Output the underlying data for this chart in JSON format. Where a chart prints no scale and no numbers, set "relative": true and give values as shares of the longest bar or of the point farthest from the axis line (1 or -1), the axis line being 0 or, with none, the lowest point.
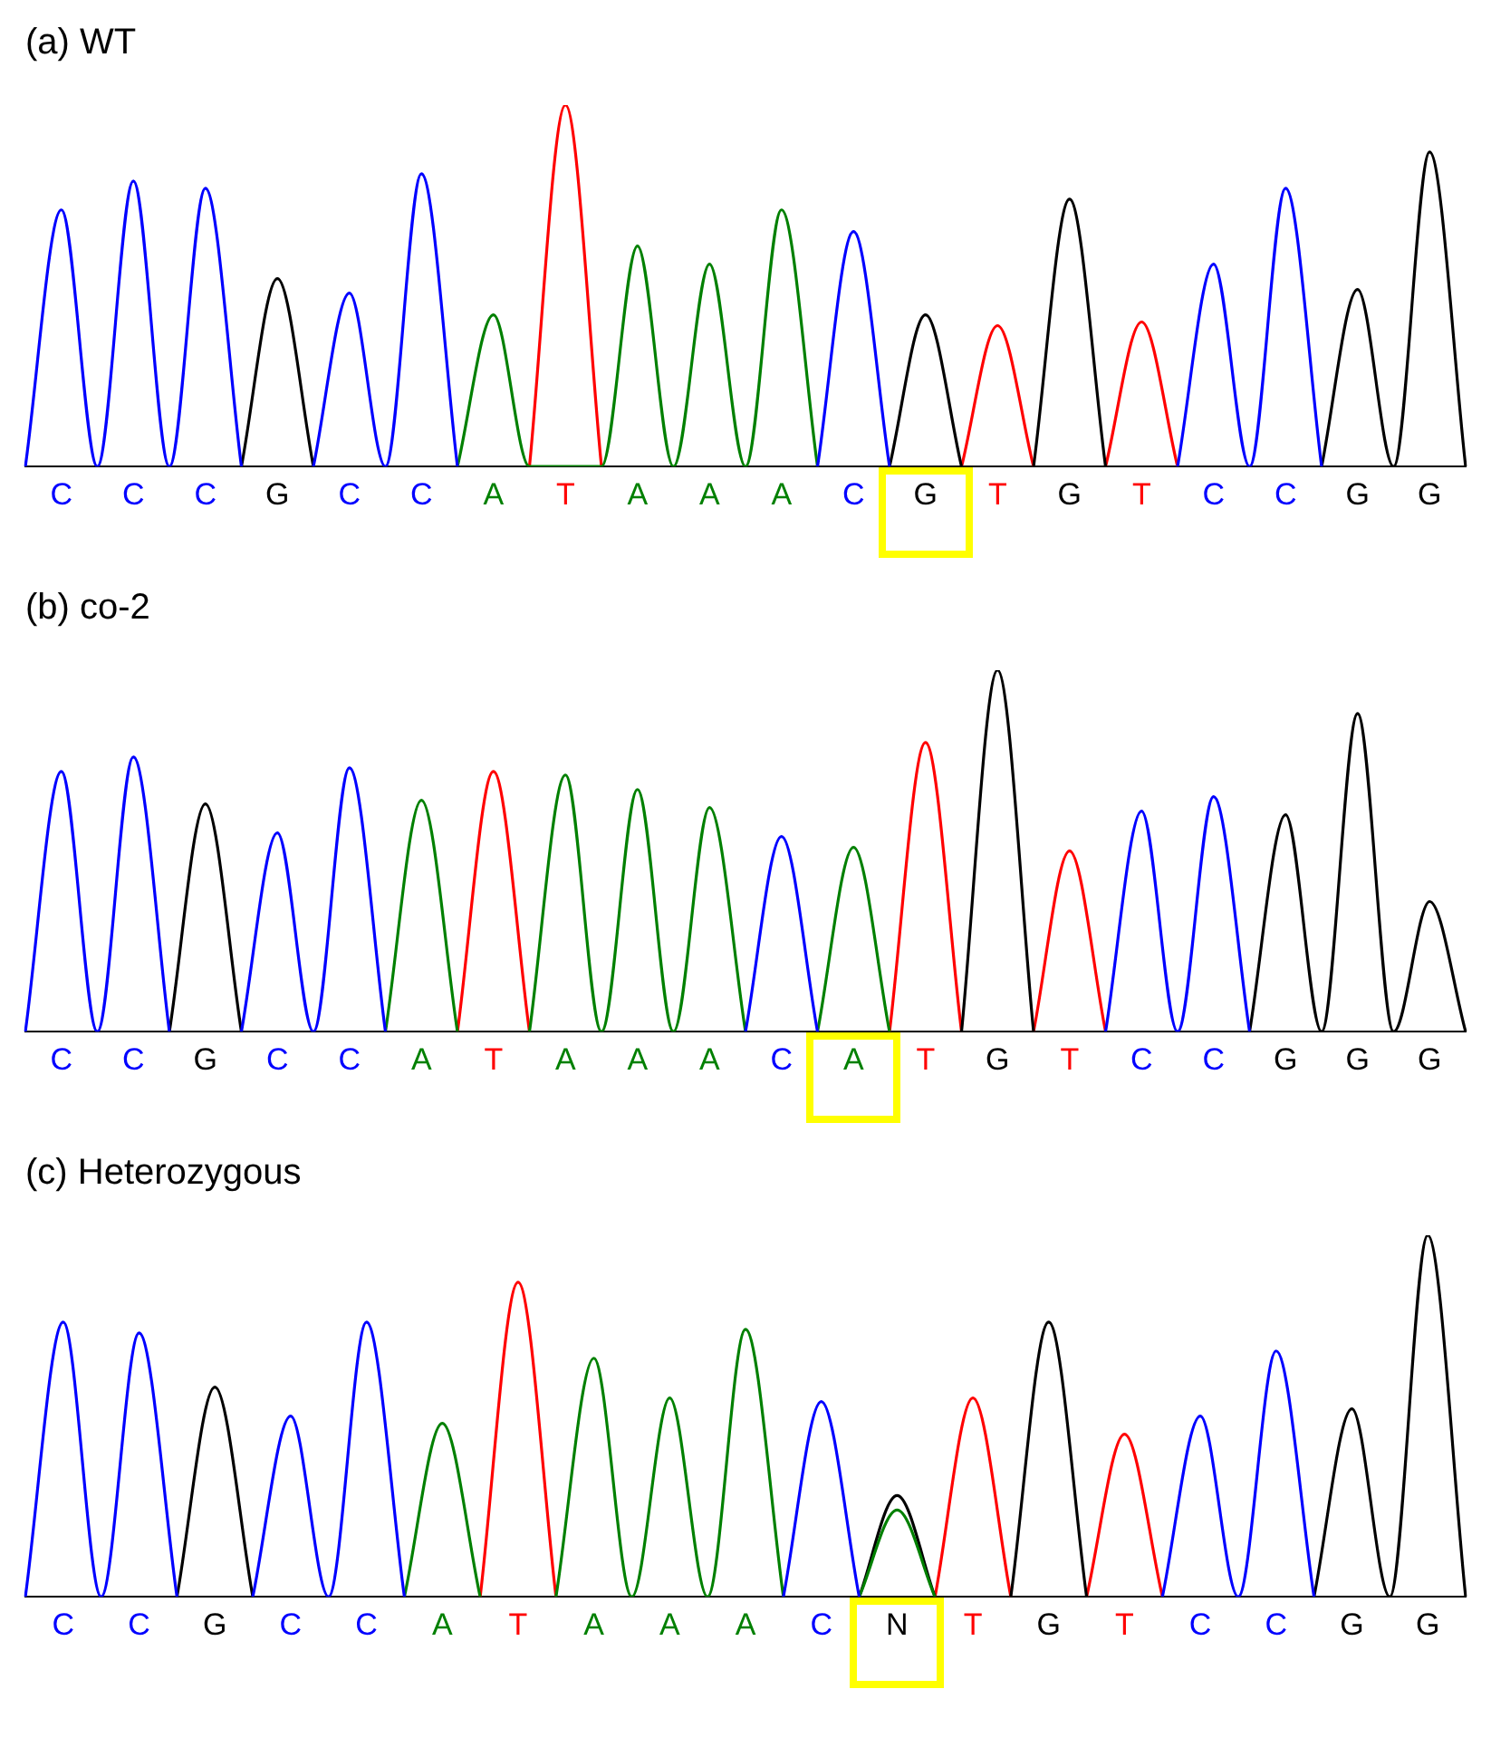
{
  "chart_data": [
    {
      "type": "line",
      "title": "(a) WT",
      "relative": true,
      "legend": false,
      "grid": false,
      "categories": [
        null,
        "C",
        null,
        "C",
        null,
        "C",
        null,
        "G",
        null,
        "C",
        null,
        "C",
        null,
        "A",
        null,
        "T",
        null,
        "A",
        null,
        "A",
        null,
        "A",
        null,
        "C",
        null,
        "G",
        null,
        "T",
        null,
        "G",
        null,
        "T",
        null,
        "C",
        null,
        "C",
        null,
        "G",
        null,
        "G",
        null
      ],
      "series": [
        {
          "color": "#0000ff",
          "values": [
            0,
            0.71,
            0,
            0.79,
            0,
            0.77,
            0,
            null,
            0,
            0.48,
            0,
            0.81,
            0,
            null,
            null,
            null,
            null,
            null,
            null,
            null,
            null,
            null,
            0,
            0.65,
            0,
            null,
            null,
            null,
            null,
            null,
            null,
            null,
            0,
            0.56,
            0,
            0.77,
            0,
            null,
            null,
            null,
            null
          ]
        },
        {
          "color": "#008000",
          "values": [
            null,
            null,
            null,
            null,
            null,
            null,
            null,
            null,
            null,
            null,
            null,
            null,
            0,
            0.42,
            0,
            0,
            0,
            0.61,
            0,
            0.56,
            0,
            0.71,
            0,
            null,
            null,
            null,
            null,
            null,
            null,
            null,
            null,
            null,
            null,
            null,
            null,
            null,
            null,
            null,
            null,
            null,
            null
          ]
        },
        {
          "color": "#000000",
          "values": [
            null,
            null,
            null,
            null,
            null,
            null,
            0,
            0.52,
            0,
            null,
            null,
            null,
            null,
            null,
            null,
            null,
            null,
            null,
            null,
            null,
            null,
            null,
            null,
            null,
            0,
            0.42,
            0,
            null,
            0,
            0.74,
            0,
            null,
            null,
            null,
            null,
            null,
            0,
            0.49,
            0,
            0.87,
            0
          ]
        },
        {
          "color": "#ff0000",
          "values": [
            null,
            null,
            null,
            null,
            null,
            null,
            null,
            null,
            null,
            null,
            null,
            null,
            null,
            null,
            0,
            1,
            0,
            null,
            null,
            null,
            null,
            null,
            null,
            null,
            null,
            null,
            0,
            0.39,
            0,
            null,
            0,
            0.4,
            0,
            null,
            null,
            null,
            null,
            null,
            null,
            null,
            null
          ]
        }
      ]
    },
    {
      "type": "line",
      "title": "(b) co-2",
      "relative": true,
      "legend": false,
      "grid": false,
      "categories": [
        null,
        "C",
        null,
        "C",
        null,
        "G",
        null,
        "C",
        null,
        "C",
        null,
        "A",
        null,
        "T",
        null,
        "A",
        null,
        "A",
        null,
        "A",
        null,
        "C",
        null,
        "A",
        null,
        "T",
        null,
        "G",
        null,
        "T",
        null,
        "C",
        null,
        "C",
        null,
        "G",
        null,
        "G",
        null,
        "G",
        null
      ],
      "series": [
        {
          "color": "#0000ff",
          "values": [
            0,
            0.72,
            0,
            0.76,
            0,
            null,
            0,
            0.55,
            0,
            0.73,
            0,
            null,
            null,
            null,
            null,
            null,
            null,
            null,
            null,
            null,
            0,
            0.54,
            0,
            null,
            null,
            null,
            null,
            null,
            null,
            null,
            0,
            0.61,
            0,
            0.65,
            0,
            null,
            null,
            null,
            null,
            null,
            null
          ]
        },
        {
          "color": "#008000",
          "values": [
            null,
            null,
            null,
            null,
            null,
            null,
            null,
            null,
            null,
            null,
            0,
            0.64,
            0,
            null,
            0,
            0.71,
            0,
            0.67,
            0,
            0.62,
            0,
            null,
            0,
            0.51,
            0,
            null,
            null,
            null,
            null,
            null,
            null,
            null,
            null,
            null,
            null,
            null,
            null,
            null,
            null,
            null,
            null
          ]
        },
        {
          "color": "#000000",
          "values": [
            null,
            null,
            null,
            null,
            0,
            0.63,
            0,
            null,
            null,
            null,
            null,
            null,
            null,
            null,
            null,
            null,
            null,
            null,
            null,
            null,
            null,
            null,
            null,
            null,
            null,
            null,
            0,
            1,
            0,
            null,
            null,
            null,
            null,
            null,
            0,
            0.6,
            0,
            0.88,
            0,
            0.36,
            0
          ]
        },
        {
          "color": "#ff0000",
          "values": [
            null,
            null,
            null,
            null,
            null,
            null,
            null,
            null,
            null,
            null,
            null,
            null,
            0,
            0.72,
            0,
            null,
            null,
            null,
            null,
            null,
            null,
            null,
            null,
            null,
            0,
            0.8,
            0,
            null,
            0,
            0.5,
            0,
            null,
            null,
            null,
            null,
            null,
            null,
            null,
            null,
            null,
            null
          ]
        }
      ]
    },
    {
      "type": "line",
      "title": "(c) Heterozygous",
      "relative": true,
      "legend": false,
      "grid": false,
      "categories": [
        null,
        "C",
        null,
        "C",
        null,
        "G",
        null,
        "C",
        null,
        "C",
        null,
        "A",
        null,
        "T",
        null,
        "A",
        null,
        "A",
        null,
        "A",
        null,
        "C",
        null,
        "N",
        null,
        "T",
        null,
        "G",
        null,
        "T",
        null,
        "C",
        null,
        "C",
        null,
        "G",
        null,
        "G",
        null
      ],
      "series": [
        {
          "color": "#0000ff",
          "values": [
            0,
            0.76,
            0,
            0.73,
            0,
            null,
            0,
            0.5,
            0,
            0.76,
            0,
            null,
            null,
            null,
            null,
            null,
            null,
            null,
            null,
            null,
            0,
            0.54,
            0,
            null,
            null,
            null,
            null,
            null,
            null,
            null,
            0,
            0.5,
            0,
            0.68,
            0,
            null,
            null,
            null,
            null
          ]
        },
        {
          "color": "#008000",
          "values": [
            null,
            null,
            null,
            null,
            null,
            null,
            null,
            null,
            null,
            null,
            0,
            0.48,
            0,
            null,
            0,
            0.66,
            0,
            0.55,
            0,
            0.74,
            0,
            null,
            0,
            0.24,
            0,
            null,
            null,
            null,
            null,
            null,
            null,
            null,
            null,
            null,
            null,
            null,
            null,
            null,
            null
          ]
        },
        {
          "color": "#000000",
          "values": [
            null,
            null,
            null,
            null,
            0,
            0.58,
            0,
            null,
            null,
            null,
            null,
            null,
            null,
            null,
            null,
            null,
            null,
            null,
            null,
            null,
            null,
            null,
            0,
            0.28,
            0,
            null,
            0,
            0.76,
            0,
            null,
            null,
            null,
            null,
            null,
            0,
            0.52,
            0,
            1,
            0
          ]
        },
        {
          "color": "#ff0000",
          "values": [
            null,
            null,
            null,
            null,
            null,
            null,
            null,
            null,
            null,
            null,
            null,
            null,
            0,
            0.87,
            0,
            null,
            null,
            null,
            null,
            null,
            null,
            null,
            null,
            null,
            0,
            0.55,
            0,
            null,
            0,
            0.45,
            0,
            null,
            null,
            null,
            null,
            null,
            null,
            null,
            null
          ]
        }
      ]
    }
  ]
}
